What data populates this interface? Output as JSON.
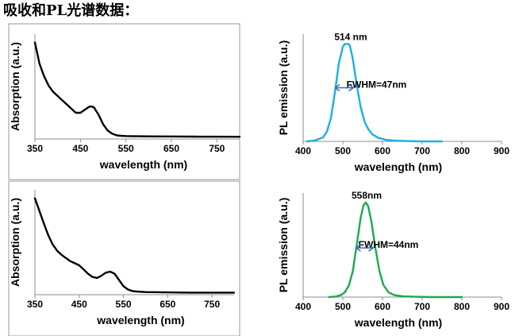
{
  "title": "吸收和PL光谱数据：",
  "chart_data": [
    {
      "type": "line",
      "xlabel": "wavelength (nm)",
      "ylabel": "Absorption (a.u.)",
      "xlim": [
        350,
        800
      ],
      "ylim": [
        0,
        1
      ],
      "xticks": [
        "350",
        "450",
        "550",
        "650",
        "750"
      ],
      "show_y_ticks": false,
      "framed": true,
      "grid": false,
      "series": [
        {
          "color": "#000000",
          "x": [
            350,
            355,
            360,
            370,
            380,
            390,
            400,
            410,
            420,
            430,
            440,
            450,
            460,
            470,
            475,
            480,
            490,
            500,
            510,
            520,
            530,
            540,
            550,
            560,
            580,
            600,
            650,
            700,
            750,
            800
          ],
          "y": [
            0.92,
            0.82,
            0.72,
            0.6,
            0.51,
            0.45,
            0.41,
            0.37,
            0.33,
            0.29,
            0.25,
            0.25,
            0.28,
            0.31,
            0.31,
            0.3,
            0.23,
            0.14,
            0.08,
            0.05,
            0.035,
            0.03,
            0.028,
            0.027,
            0.026,
            0.025,
            0.024,
            0.023,
            0.022,
            0.021
          ]
        }
      ]
    },
    {
      "type": "line",
      "xlabel": "wavelength (nm)",
      "ylabel": "PL emission (a.u.)",
      "xlim": [
        400,
        900
      ],
      "ylim": [
        0,
        1.1
      ],
      "xticks": [
        "400",
        "500",
        "600",
        "700",
        "800",
        "900"
      ],
      "show_y_ticks": false,
      "framed": false,
      "grid": false,
      "annotations": [
        {
          "text": "514 nm",
          "x": 520,
          "y": 1.04
        },
        {
          "text": "FWHM=47nm",
          "x": 585,
          "y": 0.55
        }
      ],
      "fwhm_arrow": [
        480,
        527,
        0.55
      ],
      "series": [
        {
          "color": "#1ab0e0",
          "x": [
            410,
            430,
            450,
            460,
            470,
            480,
            490,
            500,
            505,
            510,
            514,
            518,
            525,
            535,
            545,
            555,
            565,
            575,
            590,
            610,
            630,
            660,
            700,
            750
          ],
          "y": [
            0.0,
            0.01,
            0.04,
            0.1,
            0.24,
            0.5,
            0.8,
            0.97,
            1.0,
            1.0,
            1.0,
            0.98,
            0.85,
            0.58,
            0.35,
            0.2,
            0.12,
            0.07,
            0.035,
            0.015,
            0.008,
            0.003,
            0.0,
            0.0
          ]
        }
      ]
    },
    {
      "type": "line",
      "xlabel": "wavelength (nm)",
      "ylabel": "Absorption (a.u.)",
      "xlim": [
        350,
        800
      ],
      "ylim": [
        0,
        1
      ],
      "xticks": [
        "350",
        "450",
        "550",
        "650",
        "750"
      ],
      "show_y_ticks": false,
      "framed": true,
      "grid": false,
      "series": [
        {
          "color": "#000000",
          "x": [
            350,
            360,
            370,
            380,
            390,
            400,
            410,
            420,
            430,
            440,
            450,
            460,
            470,
            480,
            490,
            500,
            510,
            520,
            530,
            540,
            550,
            560,
            570,
            580,
            600,
            650,
            700,
            750,
            800
          ],
          "y": [
            0.92,
            0.8,
            0.68,
            0.57,
            0.48,
            0.42,
            0.38,
            0.35,
            0.32,
            0.3,
            0.28,
            0.24,
            0.2,
            0.17,
            0.16,
            0.18,
            0.21,
            0.22,
            0.2,
            0.14,
            0.08,
            0.05,
            0.035,
            0.03,
            0.025,
            0.022,
            0.02,
            0.02,
            0.02
          ]
        }
      ]
    },
    {
      "type": "line",
      "xlabel": "wavelength (nm)",
      "ylabel": "PL emission (a.u.)",
      "xlim": [
        400,
        900
      ],
      "ylim": [
        0,
        1.1
      ],
      "xticks": [
        "400",
        "500",
        "600",
        "700",
        "800",
        "900"
      ],
      "show_y_ticks": false,
      "framed": false,
      "grid": false,
      "annotations": [
        {
          "text": "558nm",
          "x": 560,
          "y": 1.04
        },
        {
          "text": "FWHM=44nm",
          "x": 615,
          "y": 0.52
        }
      ],
      "fwhm_arrow": [
        533,
        577,
        0.52
      ],
      "series": [
        {
          "color": "#1aab4a",
          "x": [
            465,
            480,
            495,
            505,
            515,
            525,
            535,
            545,
            552,
            558,
            564,
            572,
            582,
            592,
            602,
            615,
            630,
            650,
            680,
            720,
            760,
            800
          ],
          "y": [
            0.0,
            0.005,
            0.02,
            0.05,
            0.12,
            0.27,
            0.55,
            0.84,
            0.97,
            1.0,
            0.96,
            0.8,
            0.52,
            0.28,
            0.13,
            0.05,
            0.02,
            0.008,
            0.003,
            0.0,
            0.0,
            0.0
          ]
        }
      ]
    }
  ]
}
